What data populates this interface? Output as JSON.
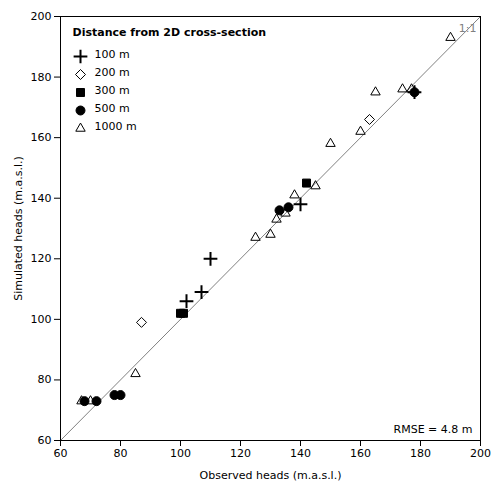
{
  "chart_data": {
    "type": "scatter",
    "title": "Distance from 2D cross-section",
    "xlabel": "Observed heads (m.a.s.l.)",
    "ylabel": "Simulated heads (m.a.s.l.)",
    "xlim": [
      60,
      200
    ],
    "ylim": [
      60,
      200
    ],
    "xticks": [
      60,
      80,
      100,
      120,
      140,
      160,
      180,
      200
    ],
    "yticks": [
      60,
      80,
      100,
      120,
      140,
      160,
      180,
      200
    ],
    "legend": "upper left",
    "annotations": [
      "RMSE = 4.8 m"
    ],
    "reference_line": {
      "label": "1:1",
      "x": [
        60,
        200
      ],
      "values": [
        60,
        200
      ],
      "color": "gray"
    },
    "series": [
      {
        "name": "100 m",
        "marker": "plus",
        "color": "black",
        "x": [
          102,
          107,
          110,
          140,
          178
        ],
        "values": [
          106,
          109,
          120,
          138,
          175
        ]
      },
      {
        "name": "200 m",
        "marker": "diamond_open",
        "color": "black",
        "x": [
          87,
          163
        ],
        "values": [
          99,
          166
        ]
      },
      {
        "name": "300 m",
        "marker": "square",
        "color": "black",
        "x": [
          100,
          101,
          142
        ],
        "values": [
          102,
          102,
          145
        ]
      },
      {
        "name": "500 m",
        "marker": "circle",
        "color": "black",
        "x": [
          68,
          72,
          78,
          80,
          133,
          136,
          178
        ],
        "values": [
          73,
          73,
          75,
          75,
          136,
          137,
          175
        ]
      },
      {
        "name": "1000 m",
        "marker": "triangle_open",
        "color": "black",
        "x": [
          67,
          70,
          85,
          125,
          130,
          132,
          135,
          138,
          145,
          150,
          160,
          165,
          174,
          177,
          190
        ],
        "values": [
          73,
          73,
          82,
          127,
          128,
          133,
          135,
          141,
          144,
          158,
          162,
          175,
          176,
          176,
          193
        ]
      }
    ]
  }
}
